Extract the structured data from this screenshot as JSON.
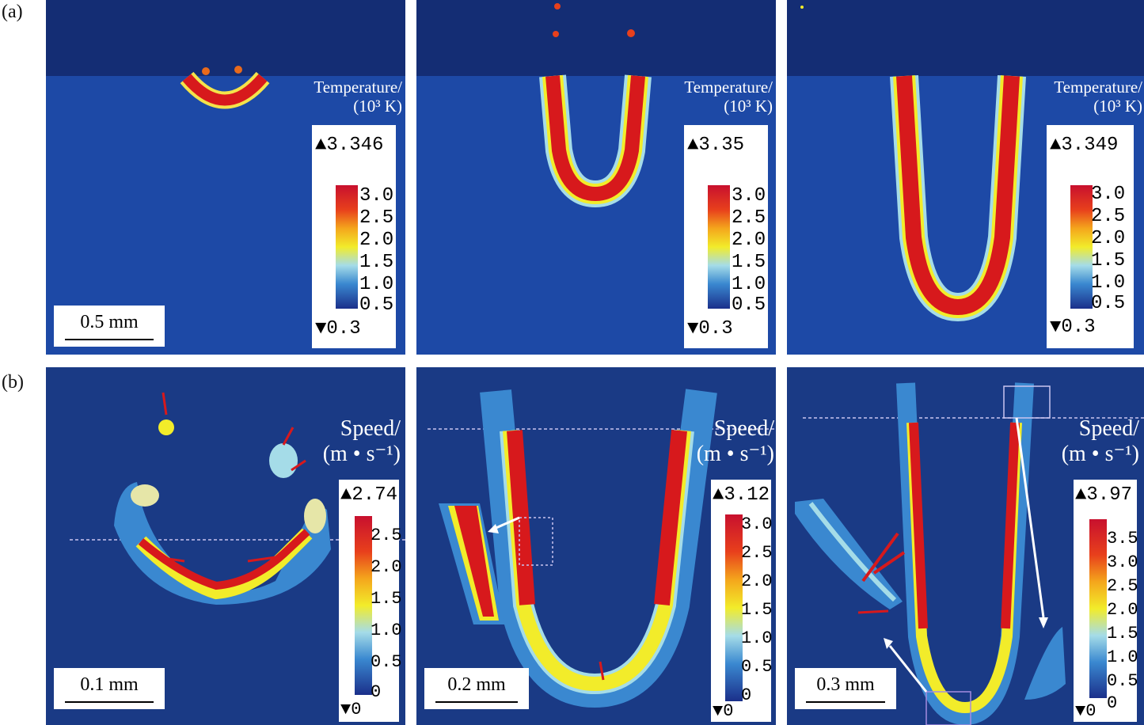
{
  "figure": {
    "row_labels": {
      "a": "(a)",
      "b": "(b)"
    },
    "row_a": {
      "colorbar_title_line1": "Temperature/",
      "colorbar_title_line2": "(10³ K)",
      "panels": [
        {
          "max": "▲3.346",
          "min": "▼0.3",
          "ticks": [
            "3.0",
            "2.5",
            "2.0",
            "1.5",
            "1.0",
            "0.5"
          ],
          "scalebar": "0.5 mm"
        },
        {
          "max": "▲3.35",
          "min": "▼0.3",
          "ticks": [
            "3.0",
            "2.5",
            "2.0",
            "1.5",
            "1.0",
            "0.5"
          ]
        },
        {
          "max": "▲3.349",
          "min": "▼0.3",
          "ticks": [
            "3.0",
            "2.5",
            "2.0",
            "1.5",
            "1.0",
            "0.5"
          ]
        }
      ]
    },
    "row_b": {
      "colorbar_title_line1": "Speed/",
      "colorbar_title_line2": "(m • s⁻¹)",
      "panels": [
        {
          "max": "▲2.74",
          "min": "▼0",
          "ticks": [
            "2.5",
            "2.0",
            "1.5",
            "1.0",
            "0.5",
            "0"
          ],
          "scalebar": "0.1 mm"
        },
        {
          "max": "▲3.12",
          "min": "▼0",
          "ticks": [
            "3.0",
            "2.5",
            "2.0",
            "1.5",
            "1.0",
            "0.5",
            "0"
          ],
          "scalebar": "0.2 mm"
        },
        {
          "max": "▲3.97",
          "min": "▼0",
          "ticks": [
            "3.5",
            "3.0",
            "2.5",
            "2.0",
            "1.5",
            "1.0",
            "0.5",
            "0"
          ],
          "scalebar": "0.3 mm"
        }
      ]
    },
    "colors": {
      "background": "#1a3a85",
      "gas": "#142d74",
      "hot": "#d7191c"
    }
  }
}
